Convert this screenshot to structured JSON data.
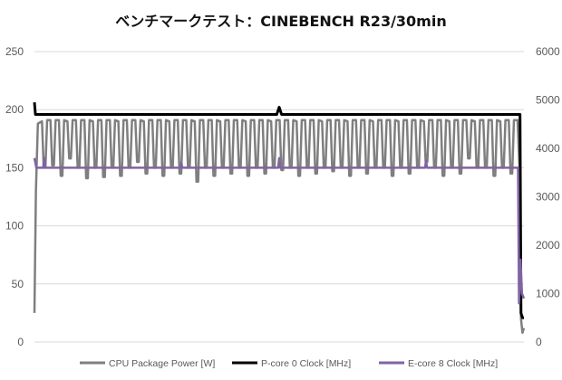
{
  "chart_data": {
    "type": "line",
    "title": "ベンチマークテスト：CINEBENCH R23/30min",
    "xlabel": "",
    "ylabel": "",
    "ylim": [
      0,
      250
    ],
    "yticks": [
      0,
      50,
      100,
      150,
      200,
      250
    ],
    "y2lim": [
      0,
      6000
    ],
    "y2ticks": [
      0,
      1000,
      2000,
      3000,
      4000,
      5000,
      6000
    ],
    "grid": "horizontal",
    "legend_position": "bottom",
    "series": [
      {
        "name": "CPU Package Power [W]",
        "axis": "left",
        "color": "#7f7f7f",
        "baseline": 191,
        "start": [
          [
            0,
            25
          ],
          [
            0.003,
            130
          ],
          [
            0.007,
            188
          ]
        ],
        "dips": [
          150,
          152,
          143,
          158,
          150,
          141,
          150,
          142,
          150,
          143,
          150,
          155,
          145,
          150,
          143,
          150,
          145,
          150,
          138,
          150,
          143,
          150,
          145,
          150,
          143,
          150,
          145,
          150,
          148,
          150,
          143,
          150,
          145,
          150,
          147,
          150,
          143,
          150,
          145,
          150,
          150,
          143,
          150,
          145,
          150,
          155,
          150,
          143,
          150,
          145,
          158,
          150,
          150,
          143,
          150,
          145
        ],
        "end": [
          [
            0.987,
            191
          ],
          [
            0.991,
            150
          ],
          [
            0.994,
            20
          ],
          [
            0.997,
            8
          ],
          [
            1.0,
            12
          ]
        ]
      },
      {
        "name": "P-core 0 Clock [MHz]",
        "axis": "right",
        "color": "#000000",
        "baseline": 4700,
        "spikes": [
          [
            0.0,
            4950
          ],
          [
            0.5,
            4850
          ]
        ],
        "end": [
          [
            0.992,
            4700
          ],
          [
            0.994,
            600
          ],
          [
            0.997,
            500
          ],
          [
            1.0,
            500
          ]
        ]
      },
      {
        "name": "E-core 8 Clock [MHz]",
        "axis": "right",
        "color": "#8064a2",
        "baseline": 3600,
        "start": [
          [
            0,
            3800
          ],
          [
            0.004,
            3600
          ]
        ],
        "bumps": [
          [
            0.02,
            3800
          ],
          [
            0.3,
            3700
          ],
          [
            0.5,
            3800
          ],
          [
            0.8,
            3750
          ]
        ],
        "end": [
          [
            0.985,
            3600
          ],
          [
            0.988,
            3600
          ],
          [
            0.99,
            800
          ],
          [
            0.993,
            1700
          ],
          [
            0.996,
            1000
          ],
          [
            1.0,
            900
          ]
        ]
      }
    ]
  }
}
